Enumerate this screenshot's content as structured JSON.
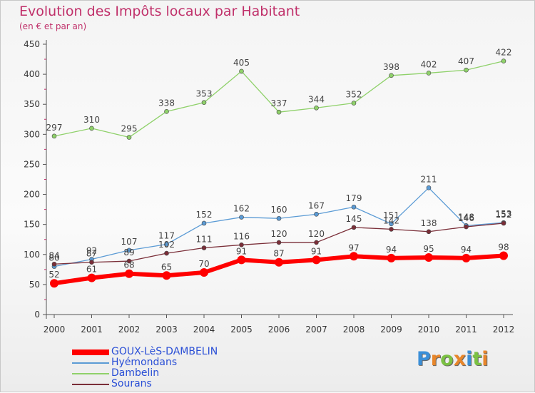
{
  "title": "Evolution des Impôts locaux par Habitant",
  "subtitle": "(en € et par an)",
  "logo_letters": [
    "P",
    "r",
    "o",
    "x",
    "i",
    "t",
    "i"
  ],
  "logo_colors": [
    "#3a8fd8",
    "#e8862a",
    "#7bc143",
    "#e8862a",
    "#3a8fd8",
    "#7bc143",
    "#e8862a"
  ],
  "chart_data": {
    "type": "line",
    "title": "Evolution des Impôts locaux par Habitant",
    "subtitle": "(en € et par an)",
    "x": [
      "2000",
      "2001",
      "2002",
      "2003",
      "2004",
      "2005",
      "2006",
      "2007",
      "2008",
      "2009",
      "2010",
      "2011",
      "2012"
    ],
    "ylim": [
      0,
      450
    ],
    "yticks": [
      0,
      50,
      100,
      150,
      200,
      250,
      300,
      350,
      400,
      450
    ],
    "grid": false,
    "legend_position": "bottom-left",
    "series": [
      {
        "name": "GOUX-LèS-DAMBELIN",
        "color": "#ff0000",
        "values": [
          52,
          61,
          68,
          65,
          70,
          91,
          87,
          91,
          97,
          94,
          95,
          94,
          98
        ]
      },
      {
        "name": "Hyémondans",
        "color": "#5b9bd5",
        "values": [
          80,
          92,
          107,
          117,
          152,
          162,
          160,
          167,
          179,
          151,
          211,
          148,
          153
        ]
      },
      {
        "name": "Dambelin",
        "color": "#8fd16a",
        "values": [
          297,
          310,
          295,
          338,
          353,
          405,
          337,
          344,
          352,
          398,
          402,
          407,
          422
        ]
      },
      {
        "name": "Sourans",
        "color": "#7a2e38",
        "values": [
          84,
          87,
          89,
          102,
          111,
          116,
          120,
          120,
          145,
          142,
          138,
          146,
          152
        ]
      }
    ]
  }
}
